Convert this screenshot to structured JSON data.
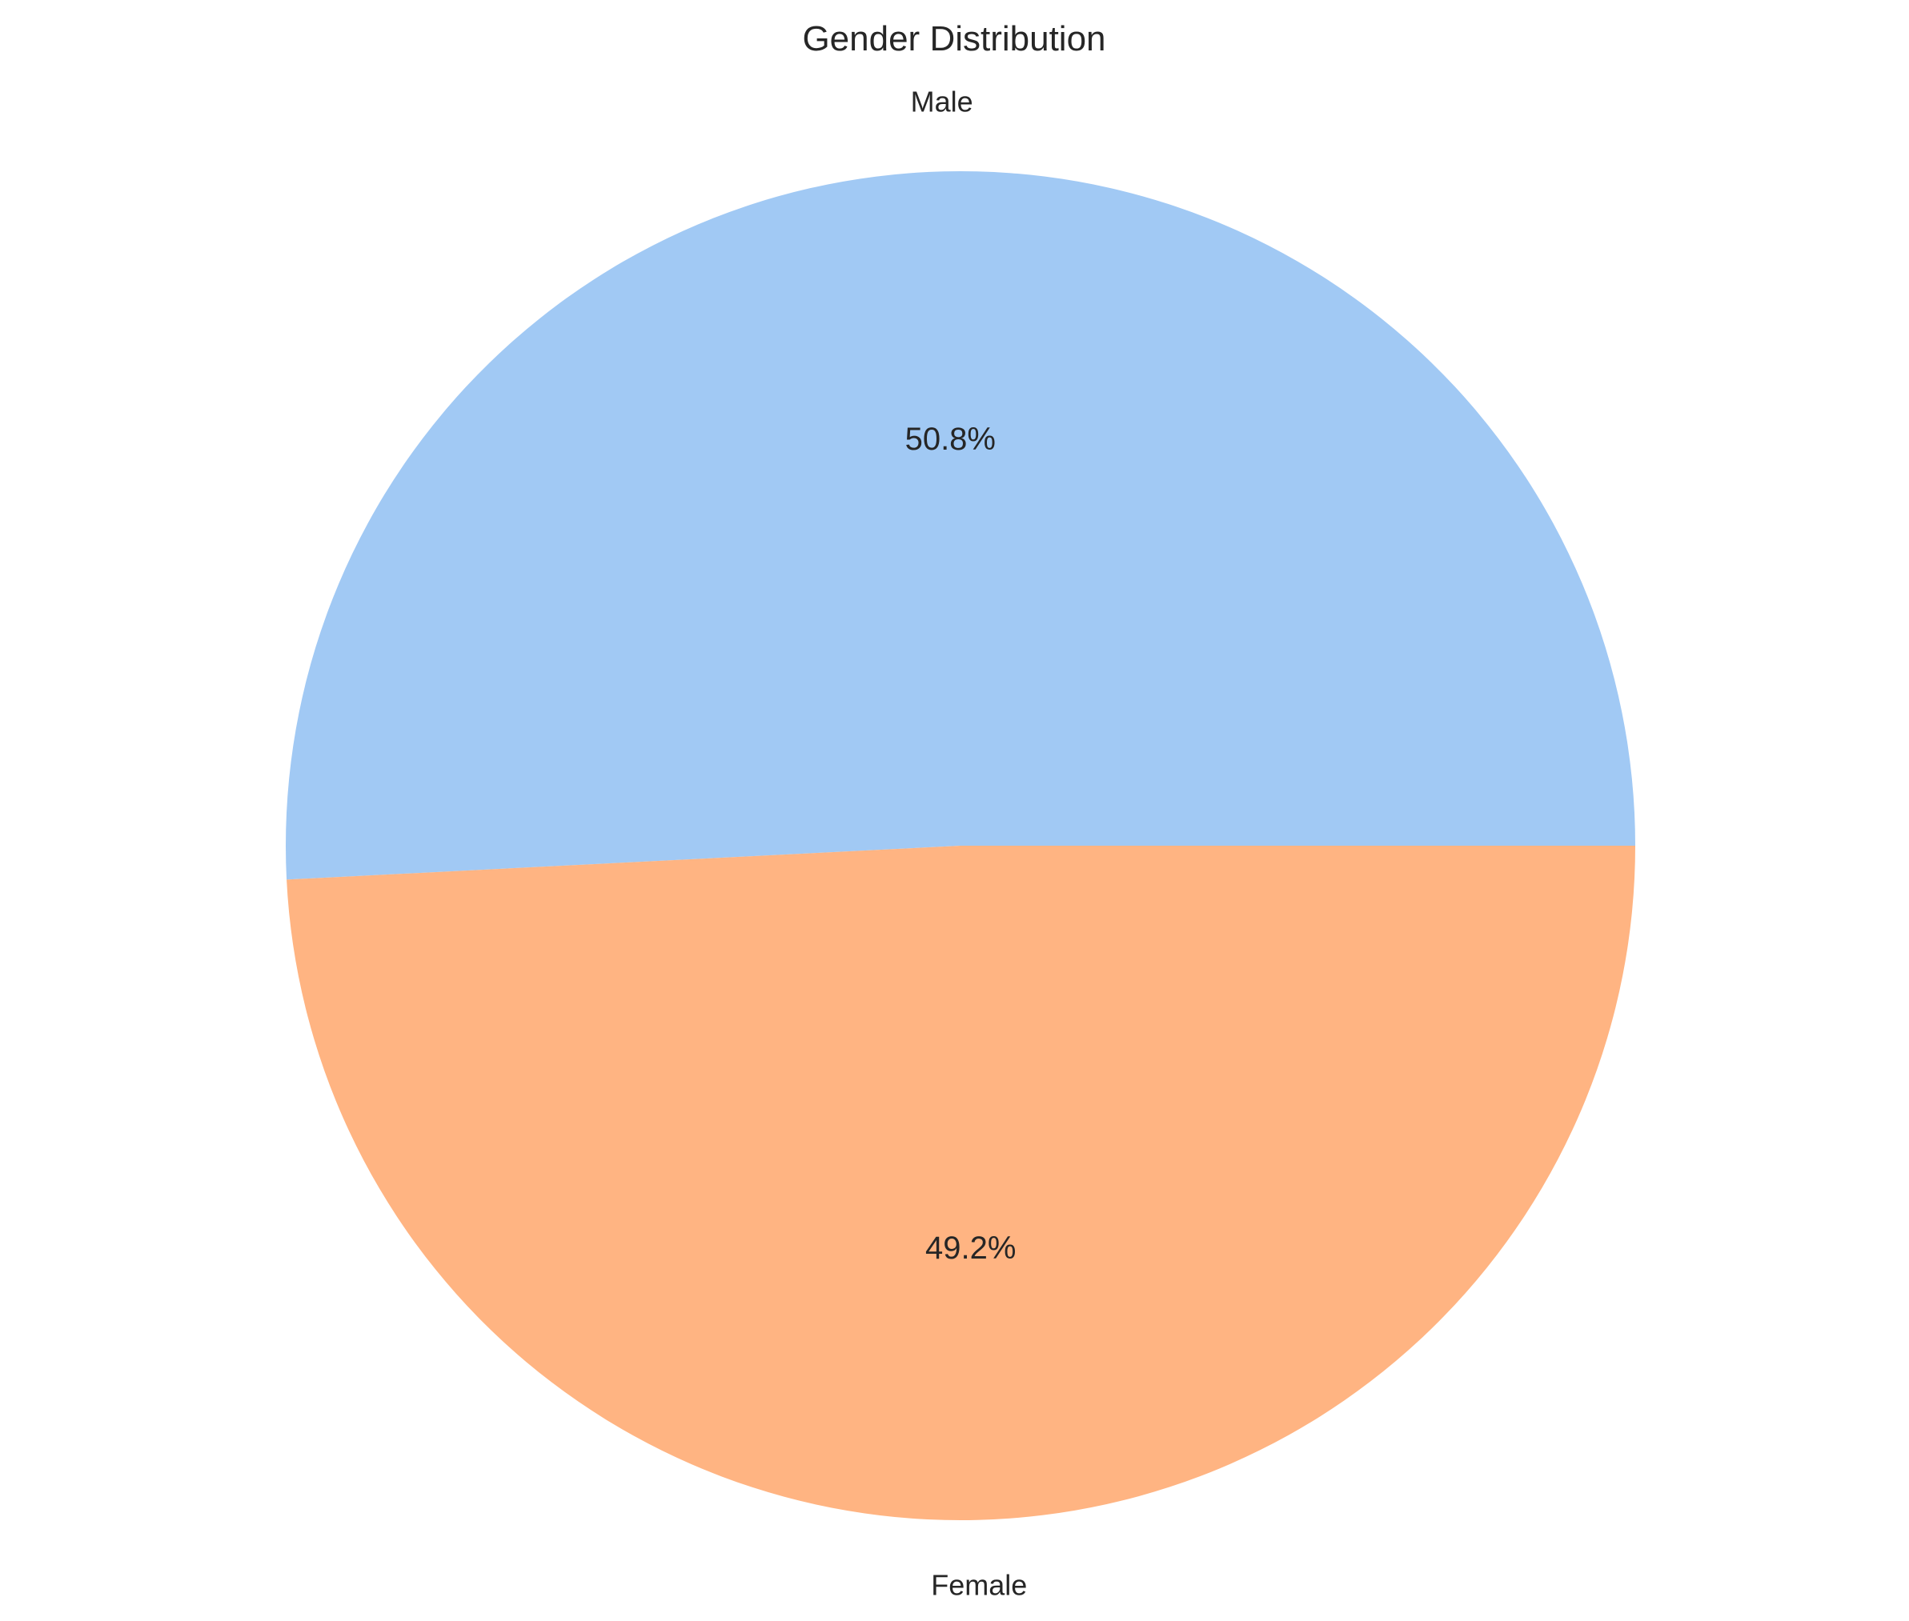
{
  "chart_data": {
    "type": "pie",
    "title": "Gender Distribution",
    "categories": [
      "Male",
      "Female"
    ],
    "values": [
      50.8,
      49.2
    ],
    "value_labels": [
      "50.8%",
      "49.2%"
    ],
    "colors": [
      "#a1c9f4",
      "#ffb482"
    ],
    "start_angle_deg": 0,
    "direction": "counterclockwise"
  }
}
